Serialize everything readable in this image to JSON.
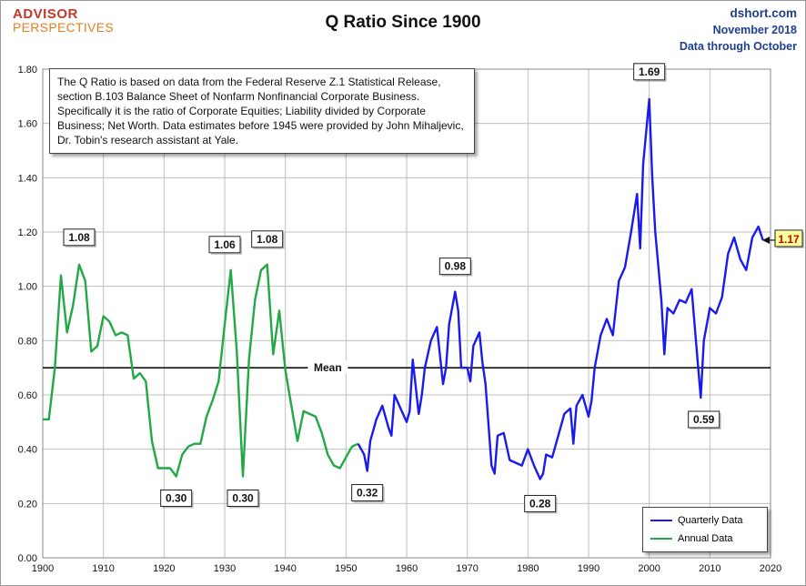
{
  "brand": {
    "line1": "ADVISOR",
    "line2": "PERSPECTIVES"
  },
  "header": {
    "source": "dshort.com",
    "date": "November 2018",
    "through": "Data through October"
  },
  "annotation_text": "The Q Ratio is based on data from the Federal Reserve Z.1 Statistical Release, section B.103 Balance Sheet of Nonfarm Nonfinancial Corporate Business. Specifically it is the ratio  of Corporate Equities; Liability divided by Corporate Business; Net Worth.  Data estimates before 1945 were provided by John Mihaljevic, Dr. Tobin's research assistant at Yale.",
  "colors": {
    "annual": "#22a844",
    "quarterly": "#1a1aee",
    "mean": "#111111",
    "grid": "#bfbfbf",
    "current_bg": "#ffff99",
    "current_text": "#cc0000"
  },
  "chart_data": {
    "type": "line",
    "title": "Q Ratio Since 1900",
    "xlabel": "",
    "ylabel": "",
    "xlim": [
      1900,
      2020
    ],
    "ylim": [
      0,
      1.8
    ],
    "x_ticks": [
      "1900",
      "1910",
      "1920",
      "1930",
      "1940",
      "1950",
      "1960",
      "1970",
      "1980",
      "1990",
      "2000",
      "2010",
      "2020"
    ],
    "y_ticks": [
      "0.00",
      "0.20",
      "0.40",
      "0.60",
      "0.80",
      "1.00",
      "1.20",
      "1.40",
      "1.60",
      "1.80"
    ],
    "grid": true,
    "legend_position": "bottom-right",
    "mean": {
      "label": "Mean",
      "value": 0.7
    },
    "series": [
      {
        "name": "Annual Data",
        "color": "#22a844",
        "x": [
          1900,
          1901,
          1902,
          1903,
          1904,
          1905,
          1906,
          1907,
          1908,
          1909,
          1910,
          1911,
          1912,
          1913,
          1914,
          1915,
          1916,
          1917,
          1918,
          1919,
          1920,
          1921,
          1922,
          1923,
          1924,
          1925,
          1926,
          1927,
          1928,
          1929,
          1930,
          1931,
          1932,
          1933,
          1934,
          1935,
          1936,
          1937,
          1938,
          1939,
          1940,
          1941,
          1942,
          1943,
          1944,
          1945,
          1946,
          1947,
          1948,
          1949,
          1950,
          1951,
          1952
        ],
        "y": [
          0.51,
          0.51,
          0.7,
          1.04,
          0.83,
          0.93,
          1.08,
          1.02,
          0.76,
          0.78,
          0.89,
          0.87,
          0.82,
          0.83,
          0.82,
          0.66,
          0.68,
          0.65,
          0.43,
          0.33,
          0.33,
          0.33,
          0.3,
          0.38,
          0.41,
          0.42,
          0.42,
          0.52,
          0.58,
          0.65,
          0.86,
          1.06,
          0.76,
          0.3,
          0.73,
          0.95,
          1.06,
          1.08,
          0.75,
          0.91,
          0.69,
          0.56,
          0.43,
          0.54,
          0.53,
          0.52,
          0.46,
          0.38,
          0.34,
          0.33,
          0.37,
          0.41,
          0.42
        ]
      },
      {
        "name": "Quarterly Data",
        "color": "#1a1aee",
        "x": [
          1952,
          1953,
          1953.5,
          1954,
          1955,
          1956,
          1957,
          1957.5,
          1958,
          1959,
          1960,
          1960.5,
          1961,
          1962,
          1962.5,
          1963,
          1964,
          1965,
          1966,
          1966.5,
          1967,
          1968,
          1968.5,
          1969,
          1970,
          1970.5,
          1971,
          1972,
          1972.5,
          1973,
          1974,
          1974.5,
          1975,
          1976,
          1977,
          1978,
          1979,
          1980,
          1981,
          1982,
          1982.5,
          1983,
          1984,
          1985,
          1986,
          1987,
          1987.5,
          1988,
          1989,
          1990,
          1990.5,
          1991,
          1992,
          1993,
          1994,
          1995,
          1996,
          1997,
          1998,
          1998.5,
          1999,
          2000,
          2000.5,
          2001,
          2002,
          2002.5,
          2003,
          2004,
          2005,
          2006,
          2007,
          2008,
          2008.5,
          2009,
          2010,
          2011,
          2012,
          2013,
          2014,
          2015,
          2016,
          2017,
          2018,
          2018.75
        ],
        "y": [
          0.42,
          0.38,
          0.32,
          0.43,
          0.51,
          0.56,
          0.48,
          0.45,
          0.6,
          0.55,
          0.5,
          0.54,
          0.73,
          0.53,
          0.6,
          0.7,
          0.8,
          0.85,
          0.64,
          0.7,
          0.86,
          0.98,
          0.91,
          0.7,
          0.7,
          0.65,
          0.78,
          0.83,
          0.72,
          0.64,
          0.34,
          0.31,
          0.45,
          0.46,
          0.36,
          0.35,
          0.34,
          0.4,
          0.34,
          0.29,
          0.31,
          0.38,
          0.37,
          0.45,
          0.53,
          0.55,
          0.42,
          0.56,
          0.6,
          0.52,
          0.58,
          0.7,
          0.82,
          0.88,
          0.82,
          1.02,
          1.07,
          1.2,
          1.34,
          1.14,
          1.45,
          1.69,
          1.4,
          1.2,
          0.95,
          0.75,
          0.92,
          0.9,
          0.95,
          0.94,
          0.99,
          0.72,
          0.59,
          0.8,
          0.92,
          0.9,
          0.96,
          1.12,
          1.18,
          1.1,
          1.06,
          1.18,
          1.22,
          1.17
        ]
      }
    ],
    "point_labels": [
      {
        "text": "1.08",
        "x": 1906,
        "y": 1.08
      },
      {
        "text": "0.30",
        "x": 1922,
        "y": 0.3
      },
      {
        "text": "1.06",
        "x": 1930,
        "y": 1.06
      },
      {
        "text": "0.30",
        "x": 1933,
        "y": 0.3
      },
      {
        "text": "1.08",
        "x": 1937,
        "y": 1.08
      },
      {
        "text": "0.32",
        "x": 1953.5,
        "y": 0.32
      },
      {
        "text": "0.98",
        "x": 1968,
        "y": 0.98
      },
      {
        "text": "0.28",
        "x": 1982,
        "y": 0.28
      },
      {
        "text": "1.69",
        "x": 2000,
        "y": 1.69
      },
      {
        "text": "0.59",
        "x": 2009,
        "y": 0.59
      }
    ],
    "current": {
      "text": "1.17",
      "value": 1.17
    }
  }
}
